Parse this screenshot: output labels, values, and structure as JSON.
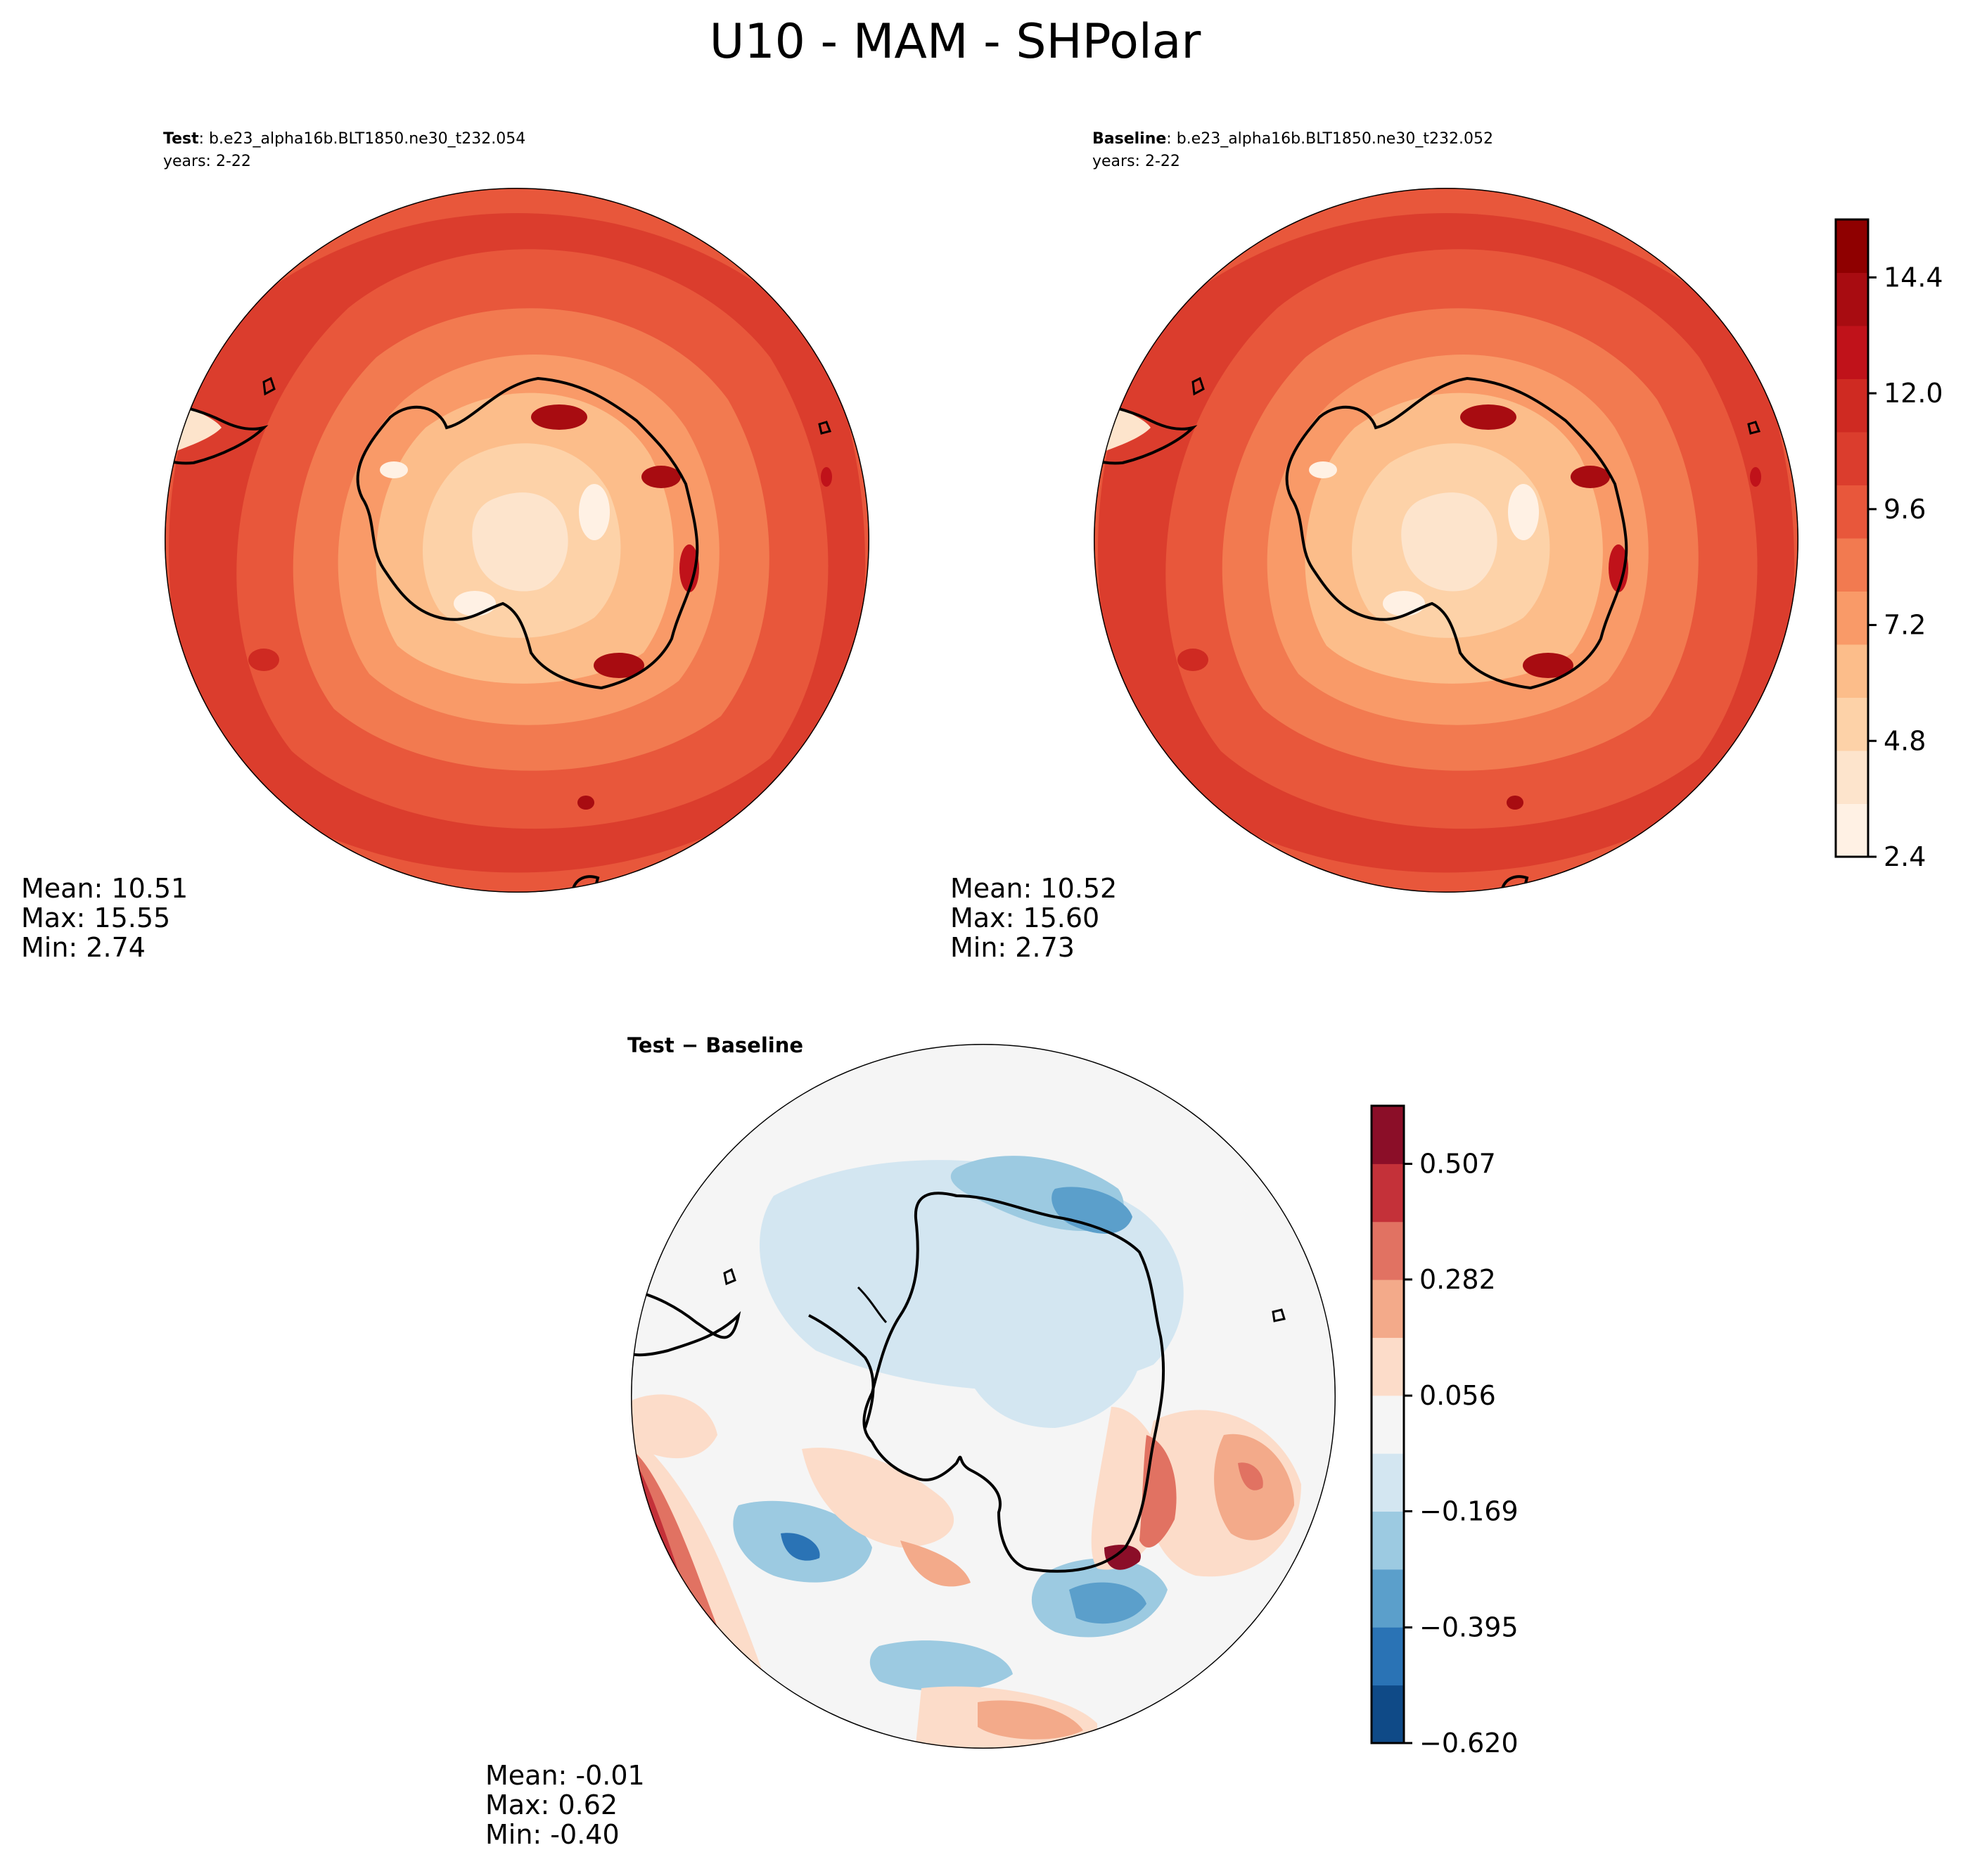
{
  "figure": {
    "title": "U10 - MAM - SHPolar"
  },
  "panels": {
    "test": {
      "label_bold": "Test",
      "label_rest": ": b.e23_alpha16b.BLT1850.ne30_t232.054",
      "years": "years: 2-22",
      "mean": "Mean: 10.51",
      "max": "Max: 15.55",
      "min": "Min:  2.74"
    },
    "baseline": {
      "label_bold": "Baseline",
      "label_rest": ": b.e23_alpha16b.BLT1850.ne30_t232.052",
      "years": "years: 2-22",
      "mean": "Mean: 10.52",
      "max": "Max: 15.60",
      "min": "Min:  2.73"
    },
    "diff": {
      "title": "Test − Baseline",
      "mean": "Mean: -0.01",
      "max": "Max:  0.62",
      "min": "Min: -0.40"
    }
  },
  "colorbars": {
    "main": {
      "ticks": [
        "2.4",
        "4.8",
        "7.2",
        "9.6",
        "12.0",
        "14.4"
      ],
      "tick_values": [
        2.4,
        4.8,
        7.2,
        9.6,
        12.0,
        14.4
      ],
      "range": [
        2.4,
        15.6
      ],
      "colors": [
        "#fff1e4",
        "#fde4cc",
        "#fdd2a8",
        "#fcbd8a",
        "#f99a68",
        "#f27a50",
        "#e8573b",
        "#db3d2d",
        "#cf2a22",
        "#c0121a",
        "#a80c11",
        "#8f0000"
      ]
    },
    "diff": {
      "ticks": [
        "−0.620",
        "−0.395",
        "−0.169",
        "0.056",
        "0.282",
        "0.507"
      ],
      "tick_values": [
        -0.62,
        -0.395,
        -0.169,
        0.056,
        0.282,
        0.507
      ],
      "range": [
        -0.62,
        0.62
      ],
      "colors": [
        "#0f4a87",
        "#2a73b5",
        "#5b9fcb",
        "#9ccae1",
        "#d3e6f1",
        "#f5f5f5",
        "#fcdcc9",
        "#f3aa8a",
        "#e17262",
        "#c43139",
        "#8b0e28"
      ]
    }
  },
  "chart_data": [
    {
      "type": "heatmap",
      "title": "Test : b.e23_alpha16b.BLT1850.ne30_t232.054",
      "subtitle": "years: 2-22",
      "variable": "U10",
      "season": "MAM",
      "region": "SHPolar",
      "projection": "south polar stereographic",
      "stats": {
        "mean": 10.51,
        "max": 15.55,
        "min": 2.74
      },
      "colorbar_ticks": [
        2.4,
        4.8,
        7.2,
        9.6,
        12.0,
        14.4
      ]
    },
    {
      "type": "heatmap",
      "title": "Baseline : b.e23_alpha16b.BLT1850.ne30_t232.052",
      "subtitle": "years: 2-22",
      "variable": "U10",
      "season": "MAM",
      "region": "SHPolar",
      "projection": "south polar stereographic",
      "stats": {
        "mean": 10.52,
        "max": 15.6,
        "min": 2.73
      },
      "colorbar_ticks": [
        2.4,
        4.8,
        7.2,
        9.6,
        12.0,
        14.4
      ]
    },
    {
      "type": "heatmap",
      "title": "Test − Baseline",
      "variable": "U10 difference",
      "projection": "south polar stereographic",
      "stats": {
        "mean": -0.01,
        "max": 0.62,
        "min": -0.4
      },
      "colorbar_ticks": [
        -0.62,
        -0.395,
        -0.169,
        0.056,
        0.282,
        0.507
      ]
    }
  ]
}
